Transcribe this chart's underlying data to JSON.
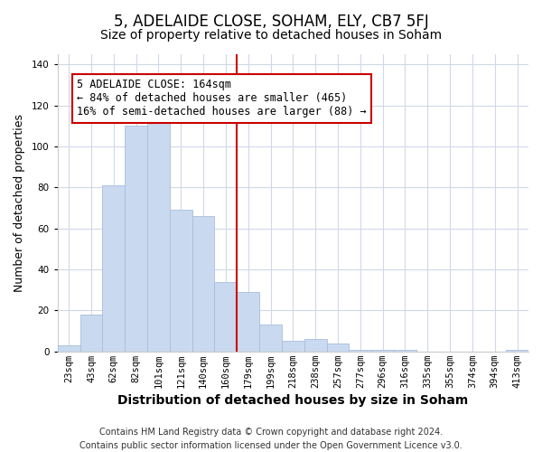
{
  "title": "5, ADELAIDE CLOSE, SOHAM, ELY, CB7 5FJ",
  "subtitle": "Size of property relative to detached houses in Soham",
  "xlabel": "Distribution of detached houses by size in Soham",
  "ylabel": "Number of detached properties",
  "bar_labels": [
    "23sqm",
    "43sqm",
    "62sqm",
    "82sqm",
    "101sqm",
    "121sqm",
    "140sqm",
    "160sqm",
    "179sqm",
    "199sqm",
    "218sqm",
    "238sqm",
    "257sqm",
    "277sqm",
    "296sqm",
    "316sqm",
    "335sqm",
    "355sqm",
    "374sqm",
    "394sqm",
    "413sqm"
  ],
  "bar_values": [
    3,
    18,
    81,
    110,
    114,
    69,
    66,
    34,
    29,
    13,
    5,
    6,
    4,
    1,
    1,
    1,
    0,
    0,
    0,
    0,
    1
  ],
  "bar_color": "#c9d9ef",
  "bar_edge_color": "#a8bedb",
  "vline_x": 7.5,
  "vline_color": "#cc0000",
  "annotation_text": "5 ADELAIDE CLOSE: 164sqm\n← 84% of detached houses are smaller (465)\n16% of semi-detached houses are larger (88) →",
  "annotation_box_color": "#ffffff",
  "annotation_box_edge": "#cc0000",
  "ylim": [
    0,
    145
  ],
  "yticks": [
    0,
    20,
    40,
    60,
    80,
    100,
    120,
    140
  ],
  "footnote": "Contains HM Land Registry data © Crown copyright and database right 2024.\nContains public sector information licensed under the Open Government Licence v3.0.",
  "title_fontsize": 12,
  "subtitle_fontsize": 10,
  "xlabel_fontsize": 10,
  "ylabel_fontsize": 9,
  "tick_fontsize": 7.5,
  "annotation_fontsize": 8.5,
  "footnote_fontsize": 7,
  "bg_color": "#ffffff",
  "grid_color": "#d0d8e8",
  "spine_color": "#cccccc"
}
